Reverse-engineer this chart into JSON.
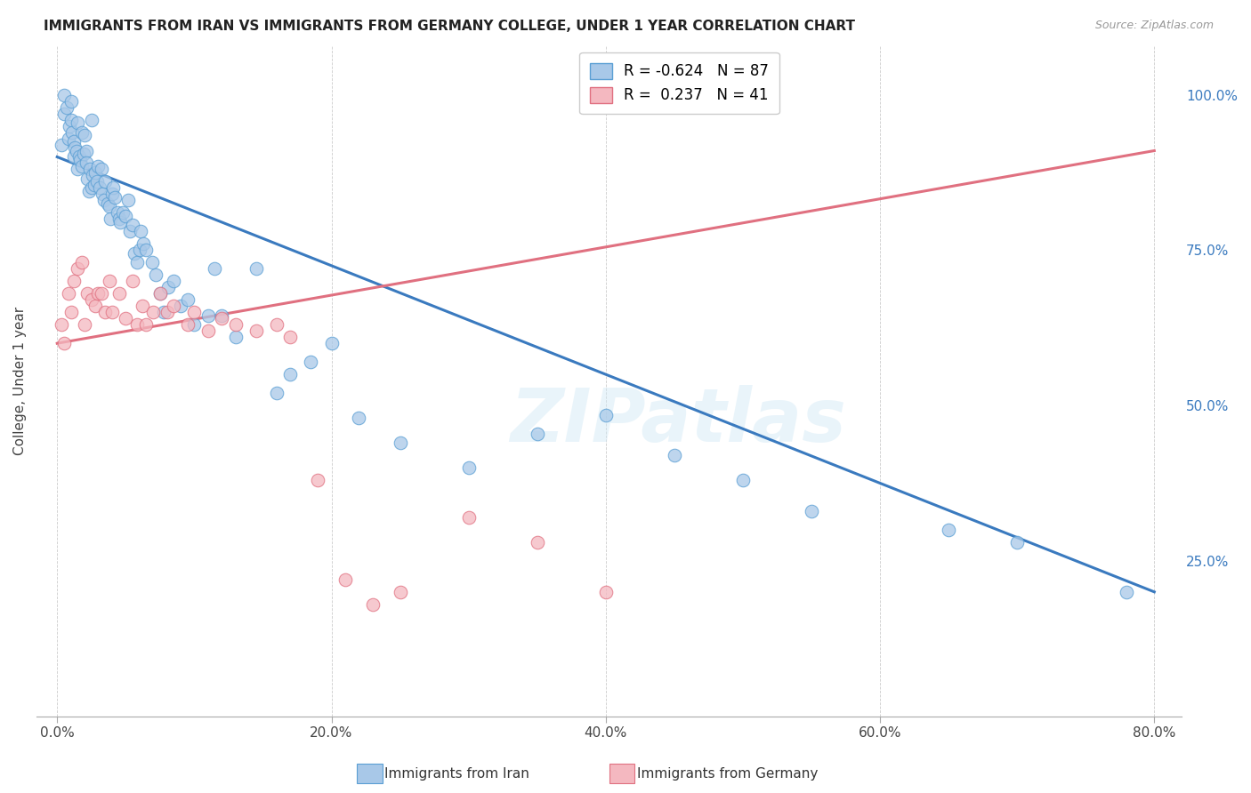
{
  "title": "IMMIGRANTS FROM IRAN VS IMMIGRANTS FROM GERMANY COLLEGE, UNDER 1 YEAR CORRELATION CHART",
  "source": "Source: ZipAtlas.com",
  "ylabel": "College, Under 1 year",
  "x_tick_labels": [
    "0.0%",
    "20.0%",
    "40.0%",
    "60.0%",
    "80.0%"
  ],
  "x_tick_values": [
    0.0,
    20.0,
    40.0,
    60.0,
    80.0
  ],
  "y_tick_labels_right": [
    "25.0%",
    "50.0%",
    "75.0%",
    "100.0%"
  ],
  "y_tick_values_right": [
    25.0,
    50.0,
    75.0,
    100.0
  ],
  "xlim": [
    -1.5,
    82.0
  ],
  "ylim": [
    0.0,
    108.0
  ],
  "color_iran": "#a8c8e8",
  "color_germany": "#f4b8c0",
  "edge_iran": "#5a9fd4",
  "edge_germany": "#e07080",
  "line_color_iran": "#3a7abf",
  "line_color_germany": "#e07080",
  "watermark": "ZIPatlas",
  "iran_scatter_x": [
    0.3,
    0.5,
    0.5,
    0.7,
    0.8,
    0.9,
    1.0,
    1.0,
    1.1,
    1.2,
    1.2,
    1.3,
    1.4,
    1.5,
    1.5,
    1.6,
    1.7,
    1.8,
    1.8,
    1.9,
    2.0,
    2.1,
    2.1,
    2.2,
    2.3,
    2.4,
    2.5,
    2.5,
    2.6,
    2.7,
    2.8,
    2.9,
    3.0,
    3.1,
    3.2,
    3.3,
    3.4,
    3.5,
    3.7,
    3.8,
    3.9,
    4.0,
    4.1,
    4.2,
    4.4,
    4.5,
    4.6,
    4.8,
    5.0,
    5.2,
    5.3,
    5.5,
    5.6,
    5.8,
    6.0,
    6.1,
    6.3,
    6.5,
    6.9,
    7.2,
    7.5,
    7.8,
    8.1,
    8.5,
    9.0,
    9.5,
    10.0,
    11.0,
    11.5,
    12.0,
    13.0,
    14.5,
    16.0,
    17.0,
    18.5,
    20.0,
    22.0,
    25.0,
    30.0,
    35.0,
    40.0,
    45.0,
    50.0,
    55.0,
    65.0,
    70.0,
    78.0
  ],
  "iran_scatter_y": [
    92.0,
    97.0,
    100.0,
    98.0,
    93.0,
    95.0,
    96.0,
    99.0,
    94.0,
    90.0,
    92.5,
    91.5,
    91.0,
    95.5,
    88.0,
    90.0,
    89.5,
    94.0,
    88.5,
    90.5,
    93.5,
    91.0,
    89.0,
    86.5,
    84.5,
    88.0,
    96.0,
    85.0,
    87.0,
    85.5,
    87.5,
    86.0,
    88.5,
    85.0,
    88.0,
    84.0,
    83.0,
    86.0,
    82.5,
    82.0,
    80.0,
    84.0,
    85.0,
    83.5,
    81.0,
    80.0,
    79.5,
    81.0,
    80.5,
    83.0,
    78.0,
    79.0,
    74.5,
    73.0,
    75.0,
    78.0,
    76.0,
    75.0,
    73.0,
    71.0,
    68.0,
    65.0,
    69.0,
    70.0,
    66.0,
    67.0,
    63.0,
    64.5,
    72.0,
    64.5,
    61.0,
    72.0,
    52.0,
    55.0,
    57.0,
    60.0,
    48.0,
    44.0,
    40.0,
    45.5,
    48.5,
    42.0,
    38.0,
    33.0,
    30.0,
    28.0,
    20.0
  ],
  "germany_scatter_x": [
    0.3,
    0.5,
    0.8,
    1.0,
    1.2,
    1.5,
    1.8,
    2.0,
    2.2,
    2.5,
    2.8,
    3.0,
    3.2,
    3.5,
    3.8,
    4.0,
    4.5,
    5.0,
    5.5,
    5.8,
    6.2,
    6.5,
    7.0,
    7.5,
    8.0,
    8.5,
    9.5,
    10.0,
    11.0,
    12.0,
    13.0,
    14.5,
    16.0,
    17.0,
    19.0,
    21.0,
    23.0,
    25.0,
    30.0,
    35.0,
    40.0
  ],
  "germany_scatter_y": [
    63.0,
    60.0,
    68.0,
    65.0,
    70.0,
    72.0,
    73.0,
    63.0,
    68.0,
    67.0,
    66.0,
    68.0,
    68.0,
    65.0,
    70.0,
    65.0,
    68.0,
    64.0,
    70.0,
    63.0,
    66.0,
    63.0,
    65.0,
    68.0,
    65.0,
    66.0,
    63.0,
    65.0,
    62.0,
    64.0,
    63.0,
    62.0,
    63.0,
    61.0,
    38.0,
    22.0,
    18.0,
    20.0,
    32.0,
    28.0,
    20.0
  ],
  "iran_trend_x": [
    0.0,
    80.0
  ],
  "iran_trend_y": [
    90.0,
    20.0
  ],
  "germany_trend_x": [
    0.0,
    80.0
  ],
  "germany_trend_y": [
    60.0,
    91.0
  ]
}
